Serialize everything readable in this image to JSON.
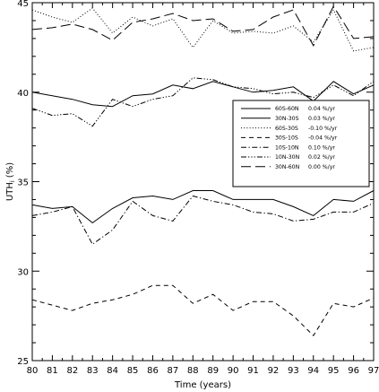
{
  "chart_data": {
    "type": "line",
    "xlabel": "Time (years)",
    "ylabel": "UTH",
    "ylabel_subscript": "i",
    "ylabel_unit": "(%)",
    "xlim": [
      80,
      97
    ],
    "ylim": [
      25,
      45
    ],
    "x": [
      80,
      81,
      82,
      83,
      84,
      85,
      86,
      87,
      88,
      89,
      90,
      91,
      92,
      93,
      94,
      95,
      96,
      97
    ],
    "x_tick_labels": [
      "80",
      "81",
      "82",
      "83",
      "84",
      "85",
      "86",
      "87",
      "88",
      "89",
      "90",
      "91",
      "92",
      "93",
      "94",
      "95",
      "96",
      "97"
    ],
    "y_ticks": [
      25,
      30,
      35,
      40,
      45
    ],
    "y_tick_labels": [
      "25",
      "30",
      "35",
      "40",
      "45"
    ],
    "grid": false,
    "legend_position": "right",
    "series": [
      {
        "name": "60S-60N",
        "trend": "0.04 %/yr",
        "dash": "solid",
        "values": [
          40.0,
          39.8,
          39.6,
          39.3,
          39.2,
          39.8,
          39.9,
          40.4,
          40.2,
          40.6,
          40.3,
          40.0,
          40.1,
          40.3,
          39.5,
          40.6,
          39.9,
          40.4
        ]
      },
      {
        "name": "30N-30S",
        "trend": "0.03 %/yr",
        "dash": "solid",
        "values": [
          33.7,
          33.5,
          33.6,
          32.7,
          33.5,
          34.1,
          34.2,
          34.0,
          34.5,
          34.5,
          34.0,
          34.0,
          34.0,
          33.6,
          33.1,
          34.0,
          33.9,
          34.5
        ]
      },
      {
        "name": "60S-30S",
        "trend": "-0.10 %/yr",
        "dash": "dotted",
        "values": [
          44.6,
          44.2,
          43.9,
          44.7,
          43.3,
          44.2,
          43.7,
          44.1,
          42.5,
          44.0,
          43.3,
          43.4,
          43.3,
          43.7,
          42.8,
          44.6,
          42.3,
          42.5
        ]
      },
      {
        "name": "30S-10S",
        "trend": "-0.04 %/yr",
        "dash": "dashed",
        "values": [
          28.4,
          28.1,
          27.8,
          28.2,
          28.4,
          28.7,
          29.2,
          29.2,
          28.2,
          28.7,
          27.8,
          28.3,
          28.3,
          27.5,
          26.4,
          28.2,
          28.0,
          28.5
        ]
      },
      {
        "name": "10S-10N",
        "trend": "0.10 %/yr",
        "dash": "dashdot",
        "values": [
          33.1,
          33.3,
          33.6,
          31.5,
          32.3,
          33.9,
          33.1,
          32.8,
          34.2,
          33.9,
          33.7,
          33.3,
          33.2,
          32.8,
          32.9,
          33.3,
          33.3,
          33.8
        ]
      },
      {
        "name": "10N-30N",
        "trend": "0.02 %/yr",
        "dash": "dashdotdotdot",
        "values": [
          39.1,
          38.7,
          38.8,
          38.1,
          39.6,
          39.2,
          39.6,
          39.8,
          40.8,
          40.7,
          40.3,
          40.2,
          39.9,
          40.0,
          39.7,
          40.4,
          39.8,
          40.6
        ]
      },
      {
        "name": "30N-60N",
        "trend": "0.00 %/yr",
        "dash": "longdash",
        "values": [
          43.5,
          43.6,
          43.8,
          43.5,
          42.9,
          43.9,
          44.1,
          44.4,
          44.0,
          44.1,
          43.4,
          43.5,
          44.2,
          44.6,
          42.6,
          44.8,
          43.0,
          43.1
        ]
      }
    ]
  }
}
